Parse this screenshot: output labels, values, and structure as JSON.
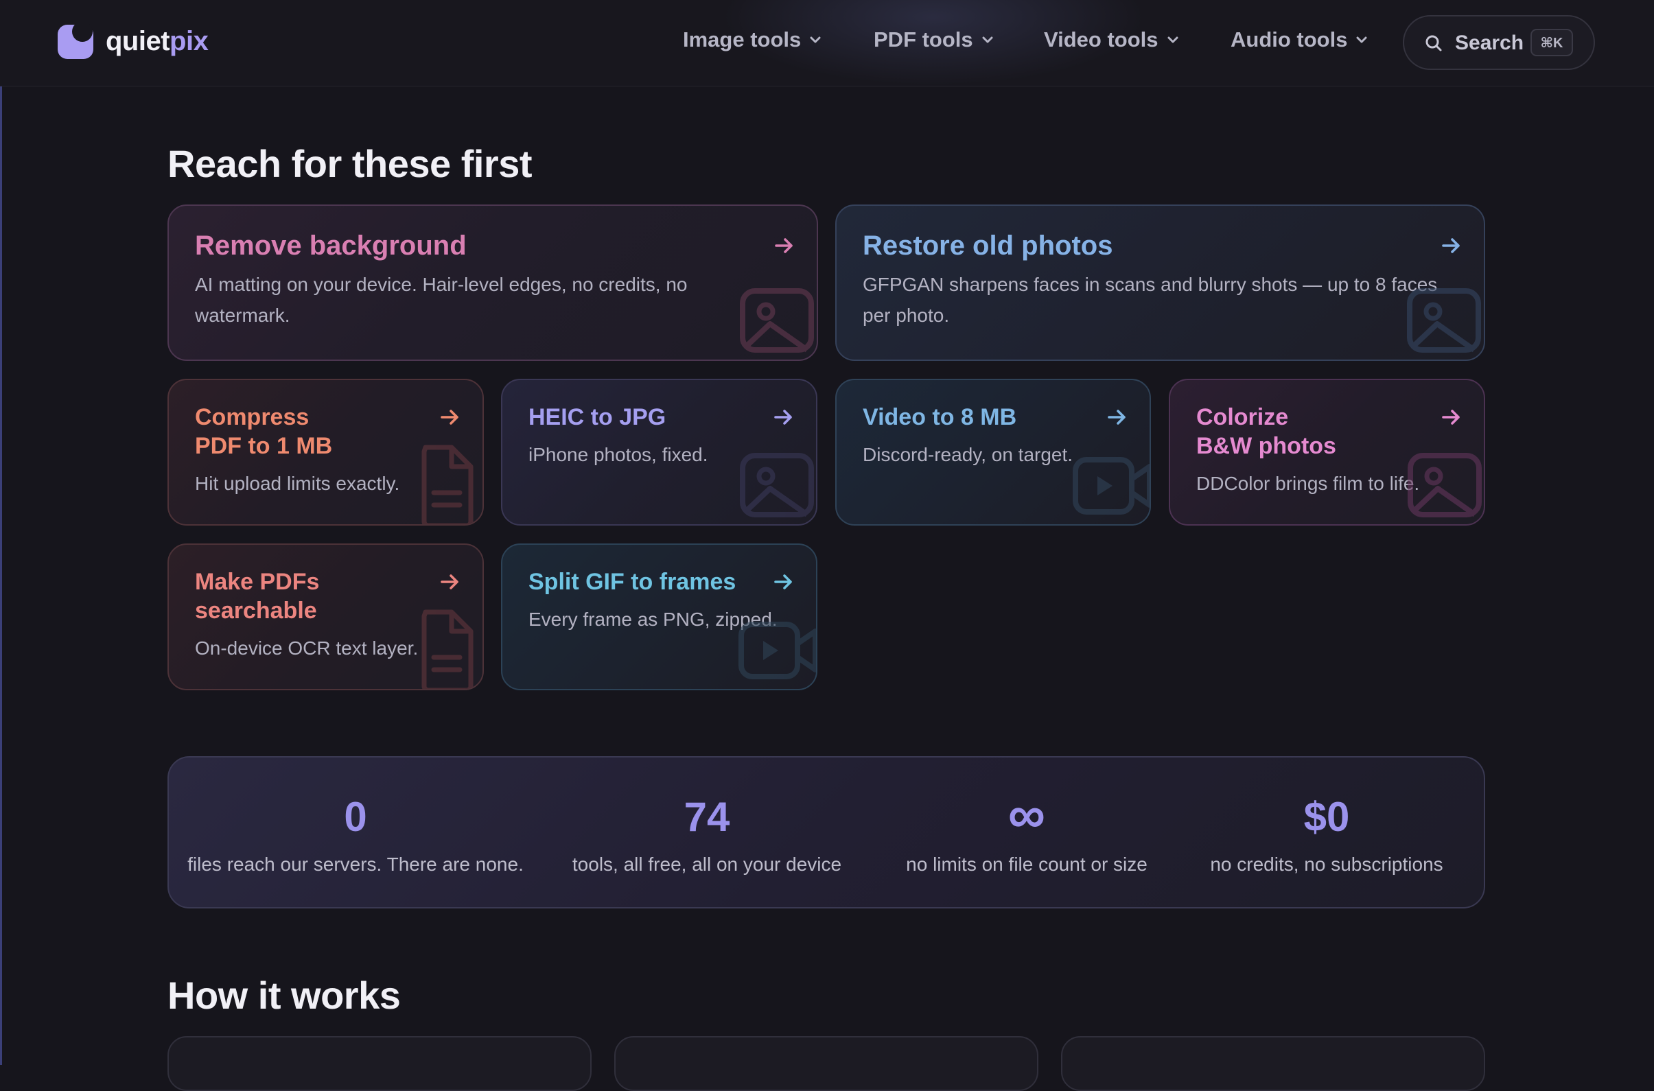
{
  "brand": {
    "name_part1": "quiet",
    "name_part2": "pix"
  },
  "nav": {
    "items": [
      {
        "label": "Image tools"
      },
      {
        "label": "PDF tools"
      },
      {
        "label": "Video tools"
      },
      {
        "label": "Audio tools"
      }
    ],
    "search": {
      "label": "Search",
      "shortcut": "⌘K"
    }
  },
  "sections": {
    "featured_title": "Reach for these first",
    "how_title": "How it works"
  },
  "cards": [
    {
      "title": "Remove background",
      "desc": "AI matting on your device. Hair-level edges, no credits, no watermark.",
      "icon": "image-icon",
      "color": "#d97fb2"
    },
    {
      "title": "Restore old photos",
      "desc": "GFPGAN sharpens faces in scans and blurry shots — up to 8 faces per photo.",
      "icon": "image-icon",
      "color": "#86b2e6"
    },
    {
      "title_line1": "Compress",
      "title_line2": "PDF to 1 MB",
      "desc": "Hit upload limits exactly.",
      "icon": "document-icon",
      "color": "#ef8a6f"
    },
    {
      "title": "HEIC to JPG",
      "desc": "iPhone photos, fixed.",
      "icon": "image-icon",
      "color": "#a59ff0"
    },
    {
      "title": "Video to 8 MB",
      "desc": "Discord-ready, on target.",
      "icon": "video-icon",
      "color": "#7fb6e4"
    },
    {
      "title_line1": "Colorize",
      "title_line2": "B&W photos",
      "desc": "DDColor brings film to life.",
      "icon": "image-icon",
      "color": "#e58ad0"
    },
    {
      "title_line1": "Make PDFs",
      "title_line2": "searchable",
      "desc": "On-device OCR text layer.",
      "icon": "document-icon",
      "color": "#ec8580"
    },
    {
      "title": "Split GIF to frames",
      "desc": "Every frame as PNG, zipped.",
      "icon": "video-icon",
      "color": "#6fc4e2"
    }
  ],
  "stats": [
    {
      "value": "0",
      "label": "files reach our servers. There are none."
    },
    {
      "value": "74",
      "label": "tools, all free, all on your device"
    },
    {
      "value": "∞",
      "label": "no limits on file count or size"
    },
    {
      "value": "$0",
      "label": "no credits, no subscriptions"
    }
  ],
  "colors": {
    "accent": "#a99cf2",
    "background": "#16151c"
  }
}
